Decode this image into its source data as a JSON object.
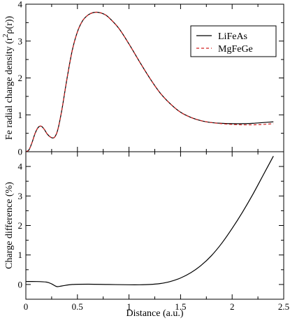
{
  "chart_data": [
    {
      "type": "line",
      "ylabel_main": "Fe radial charge density (r",
      "ylabel_sup": "2",
      "ylabel_tail": "ρ(r))",
      "xlim": [
        0,
        2.5
      ],
      "ylim": [
        0,
        4
      ],
      "xticks": [
        "0",
        "0.5",
        "1",
        "1.5",
        "2",
        "2.5"
      ],
      "yticks": [
        "0",
        "1",
        "2",
        "3",
        "4"
      ],
      "legend_position": "top-right",
      "series": [
        {
          "name": "LiFeAs",
          "color": "#000000",
          "style": "solid",
          "x": [
            0.0,
            0.03,
            0.06,
            0.09,
            0.12,
            0.15,
            0.18,
            0.21,
            0.25,
            0.28,
            0.31,
            0.35,
            0.4,
            0.45,
            0.5,
            0.55,
            0.6,
            0.65,
            0.7,
            0.75,
            0.8,
            0.9,
            1.0,
            1.1,
            1.2,
            1.3,
            1.4,
            1.5,
            1.6,
            1.7,
            1.8,
            1.9,
            2.0,
            2.1,
            2.2,
            2.3,
            2.4
          ],
          "y": [
            0.0,
            0.05,
            0.25,
            0.5,
            0.66,
            0.69,
            0.6,
            0.47,
            0.38,
            0.4,
            0.6,
            1.15,
            2.0,
            2.75,
            3.25,
            3.55,
            3.7,
            3.77,
            3.78,
            3.74,
            3.65,
            3.35,
            2.92,
            2.45,
            2.0,
            1.6,
            1.3,
            1.07,
            0.93,
            0.84,
            0.79,
            0.77,
            0.76,
            0.76,
            0.77,
            0.79,
            0.81
          ]
        },
        {
          "name": "MgFeGe",
          "color": "#d22020",
          "style": "dashed",
          "x": [
            0.0,
            0.03,
            0.06,
            0.09,
            0.12,
            0.15,
            0.18,
            0.21,
            0.25,
            0.28,
            0.31,
            0.35,
            0.4,
            0.45,
            0.5,
            0.55,
            0.6,
            0.65,
            0.7,
            0.75,
            0.8,
            0.9,
            1.0,
            1.1,
            1.2,
            1.3,
            1.4,
            1.5,
            1.6,
            1.7,
            1.8,
            1.9,
            2.0,
            2.1,
            2.2,
            2.3,
            2.4
          ],
          "y": [
            0.0,
            0.05,
            0.25,
            0.5,
            0.66,
            0.69,
            0.6,
            0.47,
            0.38,
            0.4,
            0.6,
            1.15,
            2.0,
            2.75,
            3.25,
            3.55,
            3.7,
            3.77,
            3.78,
            3.74,
            3.65,
            3.35,
            2.92,
            2.45,
            2.0,
            1.6,
            1.3,
            1.07,
            0.93,
            0.84,
            0.79,
            0.76,
            0.74,
            0.73,
            0.73,
            0.74,
            0.76
          ]
        }
      ]
    },
    {
      "type": "line",
      "ylabel": "Charge difference (%)",
      "xlabel": "Distance (a.u.)",
      "xlim": [
        0,
        2.5
      ],
      "ylim": [
        -0.5,
        4.5
      ],
      "xticks": [
        "0",
        "0.5",
        "1",
        "1.5",
        "2",
        "2.5"
      ],
      "yticks": [
        "0",
        "1",
        "2",
        "3",
        "4"
      ],
      "series": [
        {
          "color": "#000000",
          "style": "solid",
          "x": [
            0.0,
            0.1,
            0.2,
            0.25,
            0.3,
            0.35,
            0.45,
            0.6,
            0.8,
            1.0,
            1.1,
            1.2,
            1.3,
            1.4,
            1.5,
            1.6,
            1.7,
            1.8,
            1.9,
            2.0,
            2.1,
            2.2,
            2.3,
            2.4
          ],
          "y": [
            0.1,
            0.1,
            0.08,
            0.02,
            -0.07,
            -0.05,
            0.0,
            0.01,
            0.0,
            -0.01,
            -0.01,
            0.0,
            0.03,
            0.1,
            0.22,
            0.4,
            0.65,
            0.98,
            1.4,
            1.9,
            2.45,
            3.05,
            3.7,
            4.35
          ]
        }
      ]
    }
  ]
}
